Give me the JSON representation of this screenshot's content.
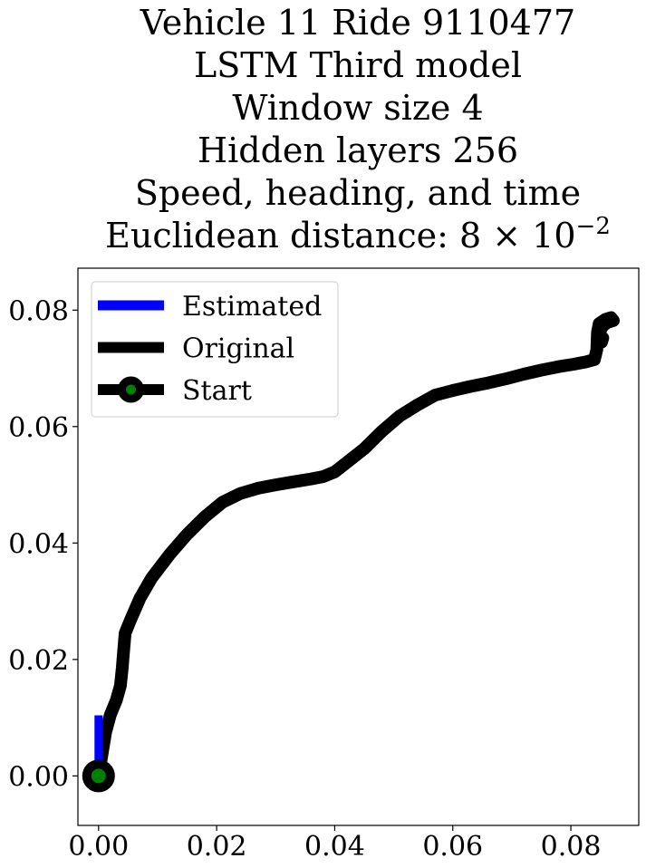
{
  "chart_data": {
    "type": "line",
    "title_lines": [
      "Vehicle 11 Ride 9110477",
      "LSTM Third model",
      "Window size 4",
      "Hidden layers 256",
      "Speed, heading, and time"
    ],
    "distance_label": {
      "prefix": "Euclidean distance: ",
      "mantissa": "8",
      "times": "×",
      "base": "10",
      "exponent": "−2"
    },
    "xlabel": "",
    "ylabel": "",
    "xlim": [
      -0.0035,
      0.0915
    ],
    "ylim": [
      -0.0085,
      0.0872
    ],
    "xticks": [
      0.0,
      0.02,
      0.04,
      0.06,
      0.08
    ],
    "xtick_labels": [
      "0.00",
      "0.02",
      "0.04",
      "0.06",
      "0.08"
    ],
    "yticks": [
      0.0,
      0.02,
      0.04,
      0.06,
      0.08
    ],
    "ytick_labels": [
      "0.00",
      "0.02",
      "0.04",
      "0.06",
      "0.08"
    ],
    "grid": false,
    "legend_position": "top-left",
    "legend": [
      {
        "label": "Estimated",
        "color": "#0000ff",
        "marker": "none"
      },
      {
        "label": "Original",
        "color": "#000000",
        "marker": "none"
      },
      {
        "label": "Start",
        "color": "#000000",
        "marker": "circle",
        "marker_face": "#008000"
      }
    ],
    "series": [
      {
        "name": "Estimated",
        "color": "#0000ff",
        "x": [
          0.0,
          0.0,
          0.0
        ],
        "y": [
          0.0,
          0.0052,
          0.0104
        ]
      },
      {
        "name": "Original",
        "color": "#000000",
        "x": [
          0.0,
          0.0007,
          0.0012,
          0.002,
          0.003,
          0.0037,
          0.004,
          0.0042,
          0.0045,
          0.0055,
          0.007,
          0.009,
          0.012,
          0.015,
          0.018,
          0.021,
          0.024,
          0.027,
          0.03,
          0.033,
          0.036,
          0.038,
          0.04,
          0.042,
          0.045,
          0.048,
          0.051,
          0.054,
          0.057,
          0.06,
          0.063,
          0.066,
          0.069,
          0.072,
          0.075,
          0.078,
          0.0805,
          0.0825,
          0.084,
          0.0844,
          0.0845,
          0.0848,
          0.0858,
          0.0868,
          0.0872,
          0.0862,
          0.0852,
          0.0848,
          0.0854,
          0.0852
        ],
        "y": [
          0.0,
          0.0045,
          0.0075,
          0.0105,
          0.013,
          0.0155,
          0.0185,
          0.021,
          0.0245,
          0.027,
          0.0305,
          0.034,
          0.038,
          0.0415,
          0.0445,
          0.047,
          0.0485,
          0.0494,
          0.05,
          0.0505,
          0.051,
          0.0514,
          0.0522,
          0.0538,
          0.0562,
          0.0592,
          0.0618,
          0.0637,
          0.0654,
          0.0662,
          0.0669,
          0.0675,
          0.0682,
          0.069,
          0.0697,
          0.0703,
          0.0707,
          0.0711,
          0.0715,
          0.0732,
          0.0762,
          0.0777,
          0.0784,
          0.0787,
          0.0782,
          0.0779,
          0.0771,
          0.0758,
          0.0752,
          0.0745
        ]
      }
    ],
    "start_point": {
      "name": "Start",
      "x": 0.0,
      "y": 0.0,
      "edge_color": "#000000",
      "face_color": "#008000"
    }
  }
}
